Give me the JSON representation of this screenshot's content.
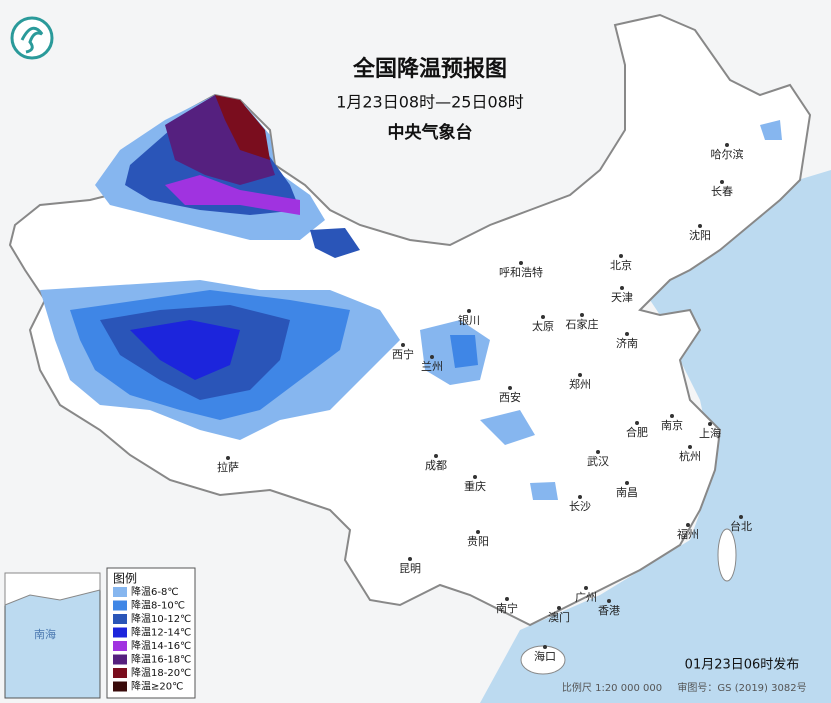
{
  "header": {
    "title": "全国降温预报图",
    "period": "1月23日08时—25日08时",
    "agency": "中央气象台"
  },
  "legend": {
    "title": "图例",
    "items": [
      {
        "label": "降温6-8℃",
        "color": "#86b6ef"
      },
      {
        "label": "降温8-10℃",
        "color": "#3f86e6"
      },
      {
        "label": "降温10-12℃",
        "color": "#2a55b8"
      },
      {
        "label": "降温12-14℃",
        "color": "#1c25dc"
      },
      {
        "label": "降温14-16℃",
        "color": "#a033e0"
      },
      {
        "label": "降温16-18℃",
        "color": "#55207f"
      },
      {
        "label": "降温18-20℃",
        "color": "#7a0d1e"
      },
      {
        "label": "降温≥20℃",
        "color": "#3a0b0b"
      }
    ]
  },
  "cities": [
    "哈尔滨",
    "长春",
    "沈阳",
    "北京",
    "天津",
    "呼和浩特",
    "石家庄",
    "太原",
    "济南",
    "银川",
    "西宁",
    "兰州",
    "郑州",
    "西安",
    "合肥",
    "南京",
    "上海",
    "武汉",
    "杭州",
    "成都",
    "重庆",
    "南昌",
    "长沙",
    "福州",
    "台北",
    "贵阳",
    "昆明",
    "南宁",
    "广州",
    "香港",
    "澳门",
    "海口",
    "拉萨"
  ],
  "inset": {
    "sea": "南海"
  },
  "footer": {
    "issued": "01月23日06时发布",
    "scale": "比例尺 1:20 000 000",
    "approval": "审图号：GS (2019) 3082号"
  }
}
